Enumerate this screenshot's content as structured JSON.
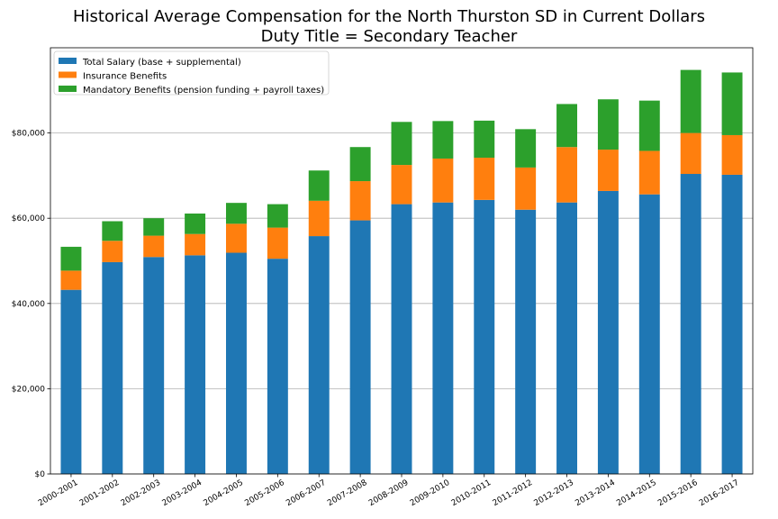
{
  "chart_data": {
    "type": "bar",
    "stacked": true,
    "title": "Historical Average Compensation for the North Thurston SD in Current Dollars",
    "subtitle": "Duty Title = Secondary Teacher",
    "xlabel": "",
    "ylabel": "",
    "ylim": [
      0,
      100000
    ],
    "yticks": [
      0,
      20000,
      40000,
      60000,
      80000
    ],
    "ytick_labels": [
      "$0",
      "$20,000",
      "$40,000",
      "$60,000",
      "$80,000"
    ],
    "grid": "horizontal",
    "legend_position": "top-left",
    "categories": [
      "2000-2001",
      "2001-2002",
      "2002-2003",
      "2003-2004",
      "2004-2005",
      "2005-2006",
      "2006-2007",
      "2007-2008",
      "2008-2009",
      "2009-2010",
      "2010-2011",
      "2011-2012",
      "2012-2013",
      "2013-2014",
      "2014-2015",
      "2015-2016",
      "2016-2017"
    ],
    "series": [
      {
        "name": "Total Salary (base + supplemental)",
        "color": "#1f77b4",
        "values": [
          43200,
          49700,
          50900,
          51300,
          51900,
          50500,
          55800,
          59500,
          63300,
          63700,
          64300,
          62000,
          63700,
          66400,
          65600,
          70400,
          70200
        ]
      },
      {
        "name": "Insurance Benefits",
        "color": "#ff7f0e",
        "values": [
          4500,
          5000,
          5000,
          5000,
          6800,
          7300,
          8300,
          9200,
          9200,
          10300,
          9900,
          9900,
          13000,
          9700,
          10200,
          9600,
          9300
        ]
      },
      {
        "name": "Mandatory Benefits (pension funding + payroll taxes)",
        "color": "#2ca02c",
        "values": [
          5600,
          4600,
          4100,
          4800,
          4900,
          5500,
          7100,
          8000,
          10100,
          8800,
          8700,
          9000,
          10100,
          11800,
          11800,
          14800,
          14700
        ]
      }
    ]
  }
}
